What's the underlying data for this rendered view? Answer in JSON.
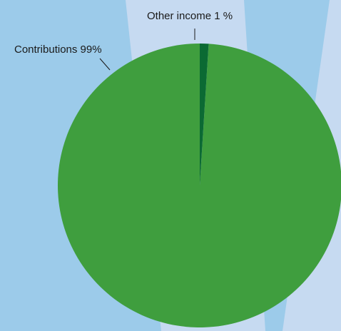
{
  "chart_data": {
    "type": "pie",
    "title": "",
    "slices": [
      {
        "name": "Contributions",
        "label": "Contributions 99%",
        "value": 99,
        "color": "#3f9e3e"
      },
      {
        "name": "Other income",
        "label": "Other income 1 %",
        "value": 1,
        "color": "#0b6a33"
      }
    ],
    "legend": "none",
    "background_colors": {
      "base": "#9ccbea",
      "highlight": "#c6daf1"
    }
  }
}
